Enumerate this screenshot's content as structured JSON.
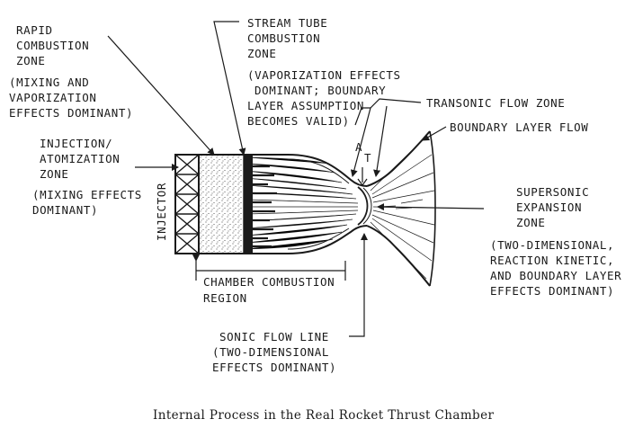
{
  "labels": {
    "rapid": [
      "RAPID",
      "COMBUSTION",
      "ZONE",
      "(MIXING AND",
      "VAPORIZATION",
      "EFFECTS DOMINANT)"
    ],
    "stream": [
      "STREAM TUBE",
      "COMBUSTION",
      "ZONE",
      "(VAPORIZATION EFFECTS",
      "DOMINANT; BOUNDARY",
      "LAYER ASSUMPTION",
      "BECOMES VALID)"
    ],
    "transonic": "TRANSONIC FLOW ZONE",
    "boundary": "BOUNDARY LAYER FLOW",
    "injection": [
      "INJECTION/",
      "ATOMIZATION",
      "ZONE",
      "(MIXING EFFECTS",
      "DOMINANT)"
    ],
    "injector": "INJECTOR",
    "throat_area": "A",
    "throat_sub": "T",
    "supersonic": [
      "SUPERSONIC",
      "EXPANSION",
      "ZONE",
      "(TWO-DIMENSIONAL,",
      "REACTION KINETIC,",
      "AND BOUNDARY LAYER",
      "EFFECTS DOMINANT)"
    ],
    "chamber": [
      "CHAMBER COMBUSTION",
      "REGION"
    ],
    "sonic": [
      "SONIC FLOW LINE",
      "(TWO-DIMENSIONAL",
      "EFFECTS DOMINANT)"
    ]
  },
  "caption": "Internal Process in the Real Rocket Thrust Chamber"
}
